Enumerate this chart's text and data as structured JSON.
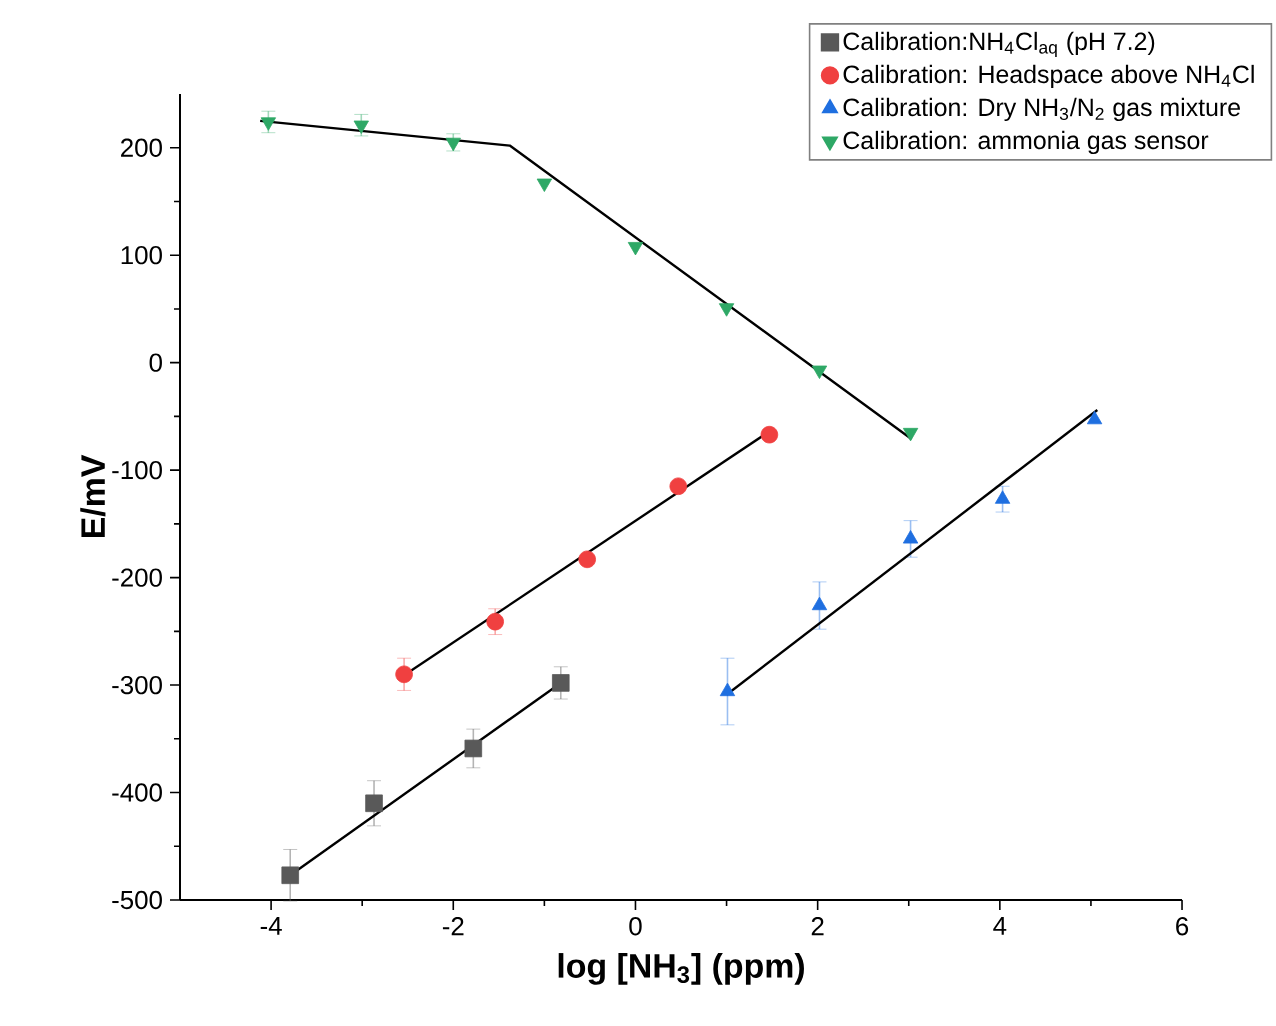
{
  "chart_data": {
    "type": "scatter",
    "xlabel": "log [NH$_{3}$] (ppm)",
    "ylabel": "E/mV",
    "xlim": [
      -5,
      6
    ],
    "xticks": [
      -4,
      -2,
      0,
      2,
      4,
      6
    ],
    "ylim": [
      -500,
      250
    ],
    "yticks": [
      -500,
      -400,
      -300,
      -200,
      -100,
      0,
      100,
      200
    ],
    "legend": "top right",
    "grid": false,
    "series": [
      {
        "name": "Calibration:NH$_{4}$Cl$_{aq}$ (pH 7.2)",
        "color": "#595959",
        "marker": "square",
        "x": [
          -3.79,
          -2.87,
          -1.78,
          -0.82
        ],
        "values": [
          -477,
          -410,
          -359,
          -298
        ],
        "errors": [
          24,
          21,
          18,
          15
        ]
      },
      {
        "name": "Calibration: Headspace above NH$_{4}$Cl",
        "color": "#f04040",
        "marker": "circle",
        "x": [
          -2.54,
          -1.54,
          -0.53,
          0.47,
          1.47
        ],
        "values": [
          -290,
          -241,
          -183,
          -115,
          -67
        ],
        "errors": [
          15,
          12,
          null,
          null,
          null
        ]
      },
      {
        "name": "Calibration: Dry NH$_{3}$/N$_{2}$ gas mixture",
        "color": "#1f6fe0",
        "marker": "triangle",
        "x": [
          1.01,
          2.02,
          3.02,
          4.03,
          5.04
        ],
        "values": [
          -306,
          -226,
          -164,
          -127,
          -53
        ],
        "errors": [
          31,
          22,
          17,
          12,
          null
        ]
      },
      {
        "name": "Calibration: ammonia gas sensor",
        "color": "#2ea866",
        "marker": "triangle-down",
        "x": [
          -4.03,
          -3.01,
          -2.0,
          -1.0,
          0,
          1.0,
          2.02,
          3.02
        ],
        "values": [
          224,
          221,
          205,
          167,
          108,
          51,
          -7,
          -65
        ],
        "errors": [
          10,
          10,
          8,
          null,
          null,
          null,
          null,
          null
        ]
      },
      {
        "type": "line",
        "color": "#000000",
        "marker": "none",
        "x": [
          -3.79,
          -0.82
        ],
        "values": [
          -477,
          -298
        ]
      },
      {
        "type": "line",
        "color": "#000000",
        "marker": "none",
        "x": [
          -2.56,
          1.47
        ],
        "values": [
          -292,
          -64
        ]
      },
      {
        "type": "line",
        "color": "#000000",
        "marker": "none",
        "x": [
          1.0,
          5.07
        ],
        "values": [
          -309,
          -44
        ]
      },
      {
        "type": "line",
        "color": "#000000",
        "marker": "none",
        "x": [
          -4.12,
          -1.38,
          3.03
        ],
        "values": [
          225,
          202,
          -71
        ]
      }
    ]
  }
}
